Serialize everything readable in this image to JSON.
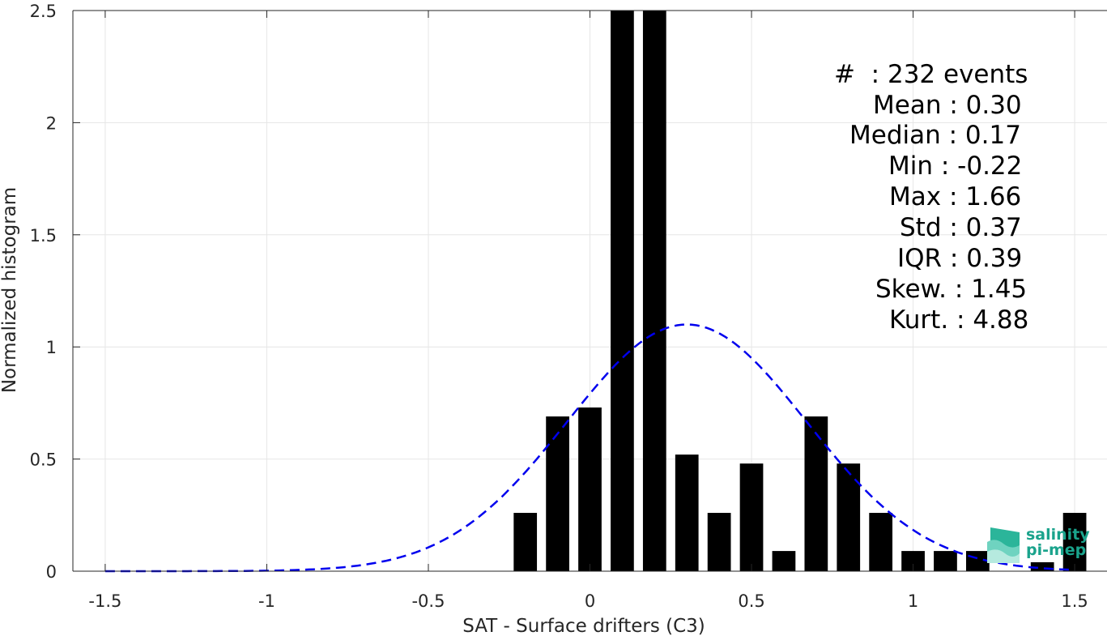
{
  "chart_data": {
    "type": "bar",
    "xlabel": "SAT - Surface drifters (C3)",
    "ylabel": "Normalized histogram",
    "xlim": [
      -1.6,
      1.6
    ],
    "ylim": [
      0,
      2.5
    ],
    "xticks": [
      "-1.5",
      "-1",
      "-0.5",
      "0",
      "0.5",
      "1",
      "1.5"
    ],
    "xtick_values": [
      -1.5,
      -1,
      -0.5,
      0,
      0.5,
      1,
      1.5
    ],
    "yticks": [
      "0",
      "0.5",
      "1",
      "1.5",
      "2",
      "2.5"
    ],
    "ytick_values": [
      0,
      0.5,
      1,
      1.5,
      2,
      2.5
    ],
    "grid": true,
    "bar_color": "#000000",
    "bars": [
      {
        "x": -0.2,
        "y": 0.26
      },
      {
        "x": -0.1,
        "y": 0.69
      },
      {
        "x": 0.0,
        "y": 0.73
      },
      {
        "x": 0.1,
        "y": 2.5
      },
      {
        "x": 0.2,
        "y": 2.5
      },
      {
        "x": 0.3,
        "y": 0.52
      },
      {
        "x": 0.4,
        "y": 0.26
      },
      {
        "x": 0.5,
        "y": 0.48
      },
      {
        "x": 0.6,
        "y": 0.09
      },
      {
        "x": 0.7,
        "y": 0.69
      },
      {
        "x": 0.8,
        "y": 0.48
      },
      {
        "x": 0.9,
        "y": 0.26
      },
      {
        "x": 1.0,
        "y": 0.09
      },
      {
        "x": 1.1,
        "y": 0.09
      },
      {
        "x": 1.2,
        "y": 0.09
      },
      {
        "x": 1.4,
        "y": 0.04
      },
      {
        "x": 1.5,
        "y": 0.26
      }
    ],
    "fit_curve": {
      "type": "normal",
      "mean": 0.3,
      "std": 0.37,
      "peak": 1.1,
      "x_range": [
        -1.5,
        1.5
      ],
      "color": "#0000ee",
      "style": "dashed"
    }
  },
  "stats": [
    {
      "label": "#  : 232 events"
    },
    {
      "label": "Mean : 0.30"
    },
    {
      "label": "Median : 0.17"
    },
    {
      "label": "Min : -0.22"
    },
    {
      "label": "Max : 1.66"
    },
    {
      "label": "Std : 0.37"
    },
    {
      "label": "IQR : 0.39"
    },
    {
      "label": "Skew. : 1.45"
    },
    {
      "label": "Kurt. : 4.88"
    }
  ],
  "logo": {
    "line1": "salinity",
    "line2": "pi-mep"
  }
}
